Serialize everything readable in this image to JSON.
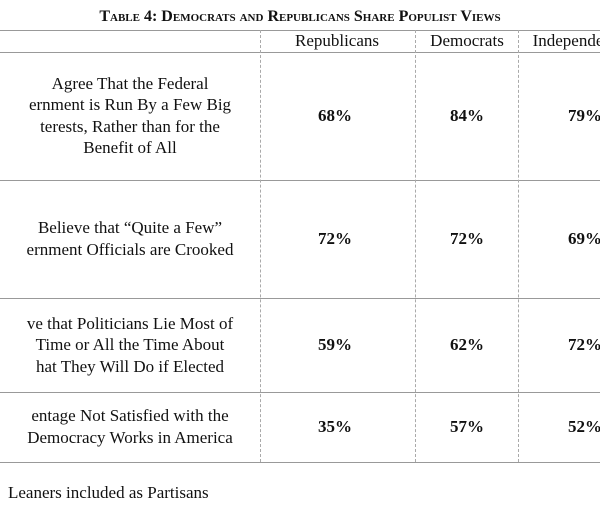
{
  "title": "Table 4: Democrats and Republicans Share Populist Views",
  "columns": [
    "Republicans",
    "Democrats",
    "Independe"
  ],
  "rows": [
    {
      "label": [
        "Agree That the Federal",
        "ernment is Run By a Few Big",
        "terests, Rather than for the",
        "Benefit of All"
      ],
      "values": [
        "68%",
        "84%",
        "79%"
      ]
    },
    {
      "label": [
        "Believe that “Quite a Few”",
        "ernment Officials are Crooked"
      ],
      "values": [
        "72%",
        "72%",
        "69%"
      ]
    },
    {
      "label": [
        "ve that Politicians Lie Most of",
        "Time or All the Time About",
        "hat They Will Do if Elected"
      ],
      "values": [
        "59%",
        "62%",
        "72%"
      ]
    },
    {
      "label": [
        "entage Not Satisfied with the",
        "Democracy Works in America"
      ],
      "values": [
        "35%",
        "57%",
        "52%"
      ]
    }
  ],
  "footnote": "Leaners included as Partisans"
}
